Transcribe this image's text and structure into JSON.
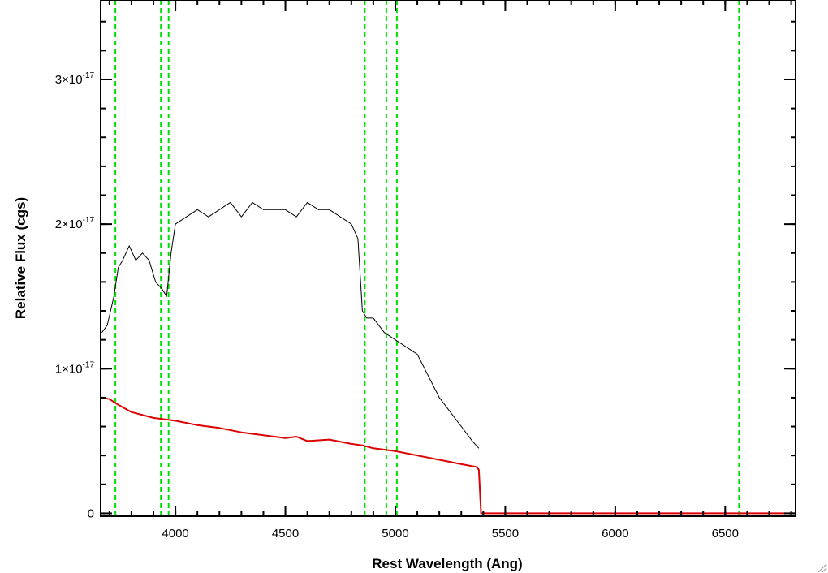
{
  "chart_data": {
    "type": "line",
    "title": "",
    "xlabel": "Rest Wavelength (Ang)",
    "ylabel": "Relative Flux (cgs)",
    "xlim": [
      3660,
      6820
    ],
    "ylim": [
      -2e-19,
      3.55e-17
    ],
    "x_ticks": [
      {
        "value": 4000,
        "label": "4000"
      },
      {
        "value": 4500,
        "label": "4500"
      },
      {
        "value": 5000,
        "label": "5000"
      },
      {
        "value": 5500,
        "label": "5500"
      },
      {
        "value": 6000,
        "label": "6000"
      },
      {
        "value": 6500,
        "label": "6500"
      }
    ],
    "y_ticks": [
      {
        "value": 0,
        "mantissa": "0",
        "exponent": ""
      },
      {
        "value": 1e-17,
        "mantissa": "1×10",
        "exponent": "-17"
      },
      {
        "value": 2e-17,
        "mantissa": "2×10",
        "exponent": "-17"
      },
      {
        "value": 3e-17,
        "mantissa": "3×10",
        "exponent": "-17"
      }
    ],
    "x_minor_step": 100,
    "y_minor_step": 2e-18,
    "grid": false,
    "vertical_lines": {
      "color": "#00dd00",
      "style": "dashed",
      "x": [
        3727,
        3934,
        3969,
        4861,
        4959,
        5007,
        6563
      ]
    },
    "series": [
      {
        "color": "#000000",
        "x": [
          3665,
          3690,
          3720,
          3740,
          3760,
          3790,
          3820,
          3850,
          3880,
          3910,
          3940,
          3960,
          3980,
          4000,
          4050,
          4100,
          4150,
          4200,
          4250,
          4300,
          4350,
          4400,
          4450,
          4500,
          4550,
          4600,
          4650,
          4700,
          4750,
          4800,
          4830,
          4850,
          4870,
          4900,
          4950,
          5000,
          5050,
          5100,
          5150,
          5200,
          5250,
          5300,
          5350,
          5380
        ],
        "values": [
          1.25e-17,
          1.3e-17,
          1.5e-17,
          1.7e-17,
          1.75e-17,
          1.85e-17,
          1.75e-17,
          1.8e-17,
          1.75e-17,
          1.6e-17,
          1.55e-17,
          1.5e-17,
          1.8e-17,
          2e-17,
          2.05e-17,
          2.1e-17,
          2.05e-17,
          2.1e-17,
          2.15e-17,
          2.05e-17,
          2.15e-17,
          2.1e-17,
          2.1e-17,
          2.1e-17,
          2.05e-17,
          2.15e-17,
          2.1e-17,
          2.1e-17,
          2.05e-17,
          2e-17,
          1.9e-17,
          1.4e-17,
          1.35e-17,
          1.35e-17,
          1.25e-17,
          1.2e-17,
          1.15e-17,
          1.1e-17,
          9.5e-18,
          8e-18,
          7e-18,
          6e-18,
          5e-18,
          4.5e-18
        ]
      },
      {
        "color": "#dd0000",
        "x": [
          3665,
          3700,
          3740,
          3800,
          3900,
          4000,
          4100,
          4200,
          4300,
          4400,
          4500,
          4550,
          4600,
          4700,
          4800,
          4850,
          4900,
          5000,
          5100,
          5200,
          5300,
          5370,
          5380,
          5390,
          6820
        ],
        "values": [
          8e-18,
          7.9e-18,
          7.5e-18,
          7e-18,
          6.6e-18,
          6.4e-18,
          6.1e-18,
          5.9e-18,
          5.6e-18,
          5.4e-18,
          5.2e-18,
          5.3e-18,
          5e-18,
          5.1e-18,
          4.8e-18,
          4.7e-18,
          4.5e-18,
          4.3e-18,
          4e-18,
          3.7e-18,
          3.4e-18,
          3.2e-18,
          3e-18,
          0.0,
          0.0
        ]
      }
    ]
  }
}
